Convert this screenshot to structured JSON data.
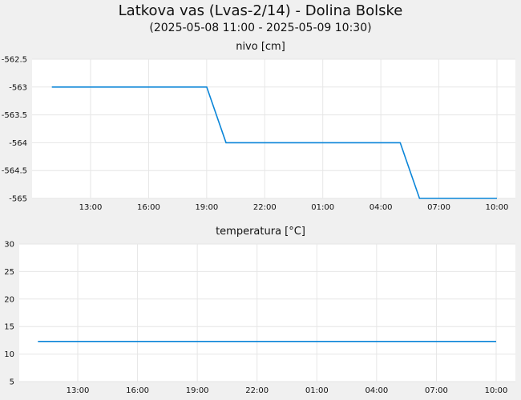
{
  "header": {
    "title": "Latkova vas (Lvas-2/14) - Dolina Bolske",
    "subtitle": "(2025-05-08 11:00 - 2025-05-09 10:30)"
  },
  "colors": {
    "line": "#0a85d8",
    "grid": "#e6e6e6",
    "plot_background": "#ffffff",
    "page_background": "#f0f0f0"
  },
  "chart_data": [
    {
      "type": "line",
      "title": "nivo [cm]",
      "x_tick_labels": [
        "13:00",
        "16:00",
        "19:00",
        "22:00",
        "01:00",
        "04:00",
        "07:00",
        "10:00"
      ],
      "xlim": [
        "2025-05-08 11:00",
        "2025-05-09 10:30"
      ],
      "ylim": [
        -565,
        -562.5
      ],
      "y_ticks": [
        -562.5,
        -563,
        -563.5,
        -564,
        -564.5,
        -565
      ],
      "y_tick_labels": [
        "-562.5",
        "-563",
        "-563.5",
        "-564",
        "-564.5",
        "-565"
      ],
      "grid": true,
      "series": [
        {
          "x": [
            "2025-05-08 11:00",
            "2025-05-08 19:00",
            "2025-05-08 20:00",
            "2025-05-09 05:00",
            "2025-05-09 06:00",
            "2025-05-09 10:00"
          ],
          "y": [
            -563,
            -563,
            -564,
            -564,
            -565,
            -565
          ]
        }
      ]
    },
    {
      "type": "line",
      "title": "temperatura [°C]",
      "x_tick_labels": [
        "13:00",
        "16:00",
        "19:00",
        "22:00",
        "01:00",
        "04:00",
        "07:00",
        "10:00"
      ],
      "xlim": [
        "2025-05-08 11:00",
        "2025-05-09 10:30"
      ],
      "ylim": [
        5,
        30
      ],
      "y_ticks": [
        30,
        25,
        20,
        15,
        10,
        5
      ],
      "y_tick_labels": [
        "30",
        "25",
        "20",
        "15",
        "10",
        "5"
      ],
      "grid": true,
      "series": [
        {
          "x": [
            "2025-05-08 11:00",
            "2025-05-09 10:00"
          ],
          "y": [
            12.3,
            12.3
          ]
        }
      ]
    }
  ]
}
